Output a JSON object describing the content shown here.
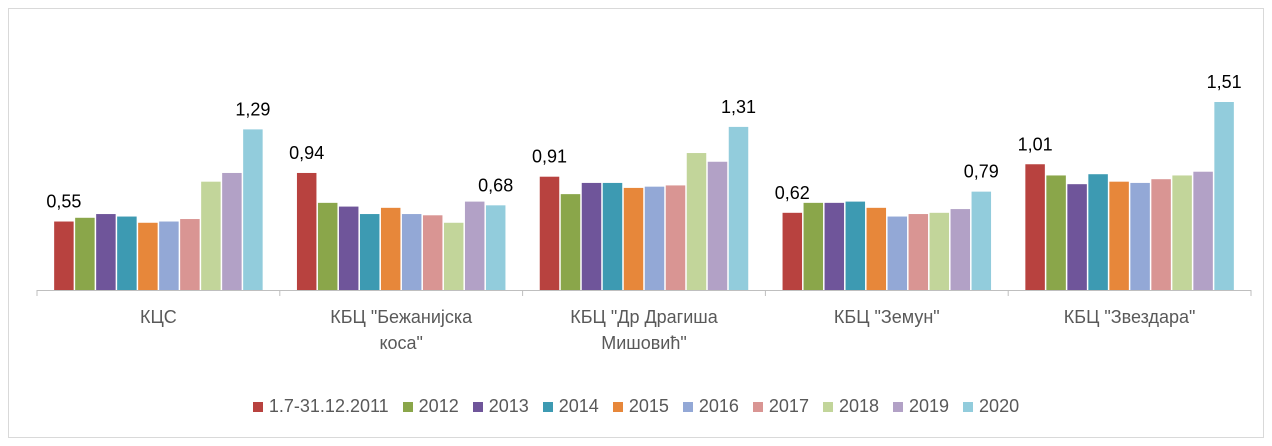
{
  "chart_data": {
    "type": "bar",
    "categories": [
      "КЦС",
      "КБЦ \"Бежанијска коса\"",
      "КБЦ \"Др Драгиша Мишовић\"",
      "КБЦ \"Земун\"",
      "КБЦ \"Звездара\""
    ],
    "series": [
      {
        "name": "1.7-31.12.2011",
        "color": "#b8423f",
        "values": [
          0.55,
          0.94,
          0.91,
          0.62,
          1.01
        ],
        "value_labels": [
          "0,55",
          "0,94",
          "0,91",
          "0,62",
          "1,01"
        ]
      },
      {
        "name": "2012",
        "color": "#8aa64a",
        "values": [
          0.58,
          0.7,
          0.77,
          0.7,
          0.92
        ]
      },
      {
        "name": "2013",
        "color": "#6f559a",
        "values": [
          0.61,
          0.67,
          0.86,
          0.7,
          0.85
        ]
      },
      {
        "name": "2014",
        "color": "#3d9ab2",
        "values": [
          0.59,
          0.61,
          0.86,
          0.71,
          0.93
        ]
      },
      {
        "name": "2015",
        "color": "#e7873a",
        "values": [
          0.54,
          0.66,
          0.82,
          0.66,
          0.87
        ]
      },
      {
        "name": "2016",
        "color": "#93a8d6",
        "values": [
          0.55,
          0.61,
          0.83,
          0.59,
          0.86
        ]
      },
      {
        "name": "2017",
        "color": "#d99593",
        "values": [
          0.57,
          0.6,
          0.84,
          0.61,
          0.89
        ]
      },
      {
        "name": "2018",
        "color": "#c2d59a",
        "values": [
          0.87,
          0.54,
          1.1,
          0.62,
          0.92
        ]
      },
      {
        "name": "2019",
        "color": "#b2a1c6",
        "values": [
          0.94,
          0.71,
          1.03,
          0.65,
          0.95
        ]
      },
      {
        "name": "2020",
        "color": "#92ccdc",
        "values": [
          1.29,
          0.68,
          1.31,
          0.79,
          1.51
        ],
        "value_labels": [
          "1,29",
          "0,68",
          "1,31",
          "0,79",
          "1,51"
        ]
      }
    ]
  }
}
